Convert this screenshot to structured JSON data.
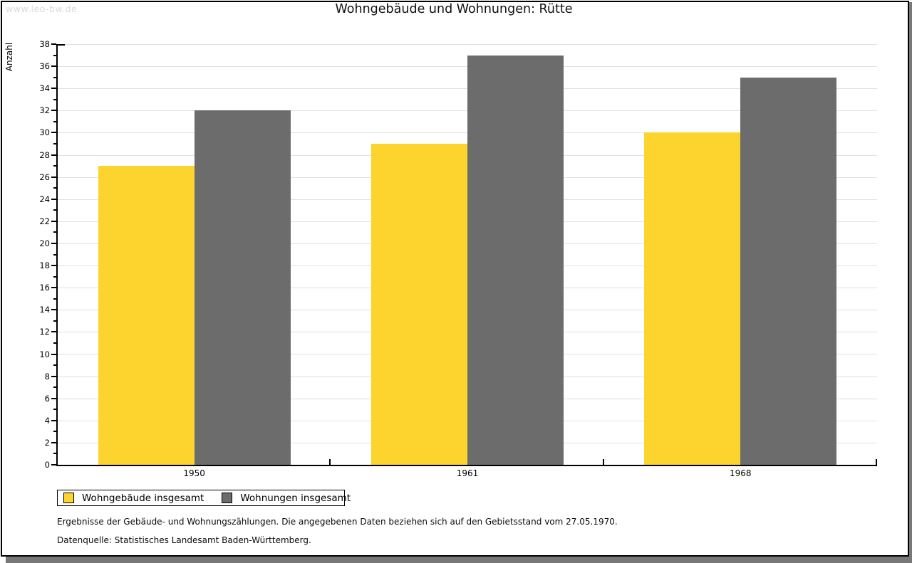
{
  "watermark": "www.leo-bw.de",
  "header": {
    "title": "Wohngebäude und Wohnungen: Rütte"
  },
  "chart_data": {
    "type": "bar",
    "title": "Wohngebäude und Wohnungen: Rütte",
    "xlabel": "",
    "ylabel": "Anzahl",
    "ylim": [
      0,
      38
    ],
    "ytick_step": 2,
    "ytick_minor_step": 1,
    "grid": true,
    "gridline_color": "#e0e0e0",
    "legend_position": "bottom-left",
    "categories": [
      "1950",
      "1961",
      "1968"
    ],
    "series": [
      {
        "name": "Wohngebäude insgesamt",
        "color": "#fdd32e",
        "values": [
          27,
          29,
          30
        ]
      },
      {
        "name": "Wohnungen insgesamt",
        "color": "#6c6c6c",
        "values": [
          32,
          37,
          35
        ]
      }
    ]
  },
  "footnotes": {
    "line1": "Ergebnisse der Gebäude- und Wohnungszählungen. Die angegebenen Daten beziehen sich auf den Gebietsstand vom 27.05.1970.",
    "line2": "Datenquelle: Statistisches Landesamt Baden-Württemberg."
  }
}
